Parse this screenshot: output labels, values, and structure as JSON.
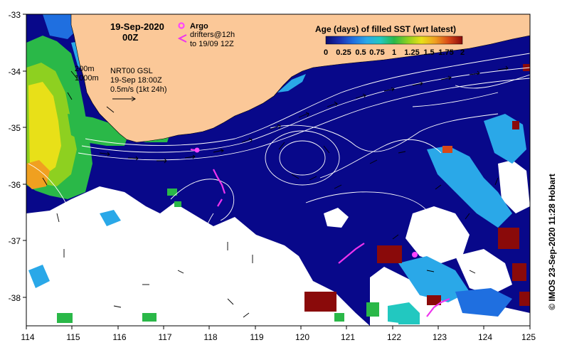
{
  "header": {
    "date": "19-Sep-2020",
    "hour": "00Z"
  },
  "argo": {
    "label": "Argo",
    "color": "#ff44ff"
  },
  "drifters": {
    "line1": "drifters@12h",
    "line2": "to 19/09 12Z",
    "color": "#ee33ee"
  },
  "contours": {
    "line1": "200m",
    "line2": "1000m"
  },
  "altimetry": {
    "line1": "NRT00 GSL",
    "line2": "19-Sep 18:00Z",
    "line3": "0.5m/s (1kt 24h)"
  },
  "colorbar": {
    "title": "Age (days) of filled SST (wrt latest)",
    "tick_labels": [
      "0",
      "0.25",
      "0.5",
      "0.75",
      "1",
      "1.25",
      "1.5",
      "1.75",
      "2"
    ],
    "colors": [
      "#0a0a6e",
      "#1a2fb0",
      "#1f6fe0",
      "#2aa8e8",
      "#22c8c0",
      "#2ab848",
      "#8ed020",
      "#e8e018",
      "#f0a020",
      "#d84818",
      "#8a0a0a"
    ]
  },
  "axes": {
    "lon_ticks": [
      "114",
      "115",
      "116",
      "117",
      "118",
      "119",
      "120",
      "121",
      "122",
      "123",
      "124",
      "125"
    ],
    "lat_ticks": [
      "-33",
      "-34",
      "-35",
      "-36",
      "-37",
      "-38"
    ],
    "lon_range": [
      114,
      125
    ],
    "lat_range": [
      -38.5,
      -33
    ]
  },
  "credit": "© IMOS 23-Sep-2020 11:28 Hobart",
  "palette": {
    "land": "#fbc898",
    "ocean": "#08088a",
    "cloud": "#ffffff"
  }
}
